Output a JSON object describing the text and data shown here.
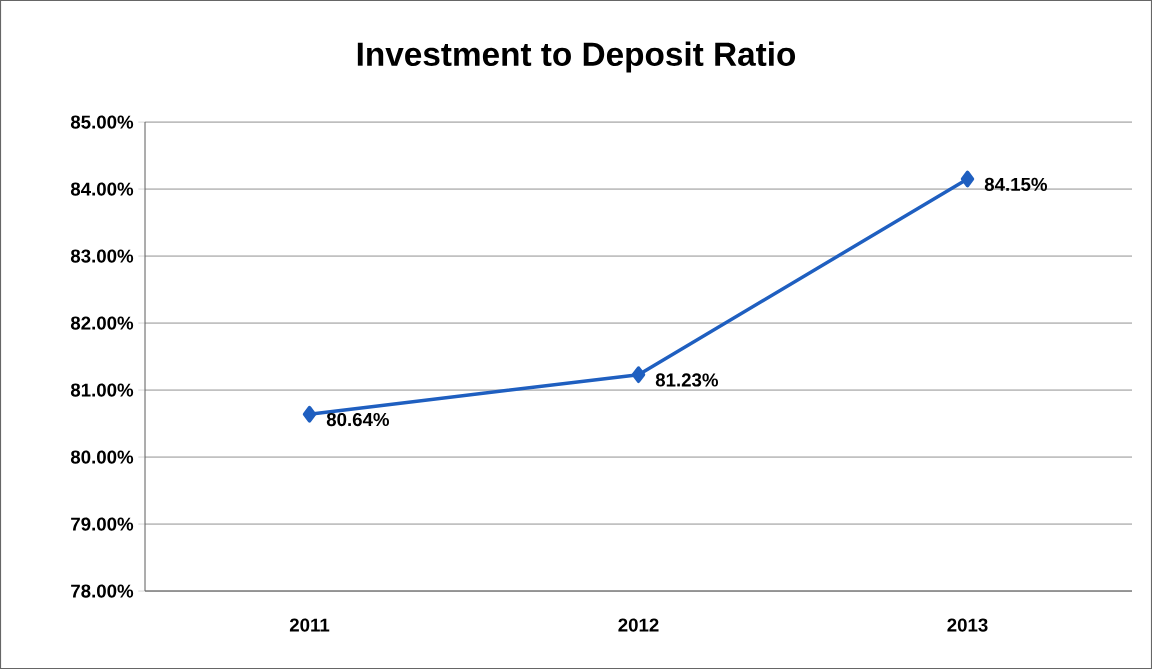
{
  "chart_data": {
    "type": "line",
    "title": "Investment to Deposit Ratio",
    "categories": [
      "2011",
      "2012",
      "2013"
    ],
    "series": [
      {
        "color": "#1f5fc0",
        "values": [
          80.64,
          81.23,
          84.15
        ],
        "value_labels": [
          "80.64%",
          "81.23%",
          "84.15%"
        ]
      }
    ],
    "ylim": [
      78,
      85
    ],
    "yticks": [
      {
        "value": 78,
        "label": "78.00%"
      },
      {
        "value": 79,
        "label": "79.00%"
      },
      {
        "value": 80,
        "label": "80.00%"
      },
      {
        "value": 81,
        "label": "81.00%"
      },
      {
        "value": 82,
        "label": "82.00%"
      },
      {
        "value": 83,
        "label": "83.00%"
      },
      {
        "value": 84,
        "label": "84.00%"
      },
      {
        "value": 85,
        "label": "85.00%"
      }
    ],
    "grid": "y",
    "marker": "diamond",
    "line_style": "solid"
  }
}
